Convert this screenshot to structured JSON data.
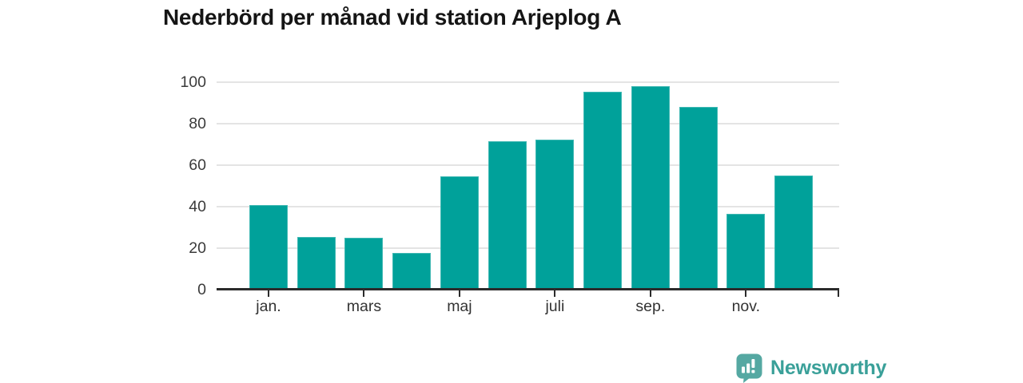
{
  "chart_data": {
    "type": "bar",
    "title": "Nederbörd per månad vid station Arjeplog A",
    "values": [
      40.4,
      25.1,
      24.9,
      17.5,
      54.6,
      71.5,
      72.3,
      95.2,
      98.0,
      88.0,
      36.5,
      54.8
    ],
    "x_tick_labels": [
      "jan.",
      "mars",
      "maj",
      "juli",
      "sep.",
      "nov."
    ],
    "x_tick_indices": [
      0,
      2,
      4,
      6,
      8,
      10
    ],
    "y_ticks": [
      0,
      20,
      40,
      60,
      80,
      100
    ],
    "ylim": [
      0,
      100
    ],
    "grid": true,
    "legend": "none",
    "bar_color": "#00a19a"
  },
  "branding": {
    "logo_text": "Newsworthy",
    "logo_icon": "speech-bubble-bar-chart-icon",
    "text_color": "#3aa099",
    "icon_color": "#55a8a2"
  },
  "colors": {
    "background": "#ffffff",
    "grid": "#e4e4e4",
    "axis": "#2b2b2b",
    "tick_label": "#3b3b3b",
    "title": "#151515"
  }
}
